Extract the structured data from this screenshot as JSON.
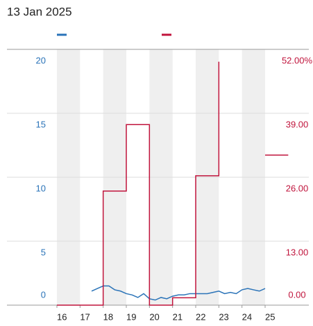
{
  "chart_data": {
    "type": "line",
    "title": "13 Jan 2025",
    "xlim": [
      16,
      25
    ],
    "xticks": [
      16,
      17,
      18,
      19,
      20,
      21,
      22,
      23,
      24,
      25
    ],
    "ylim": [
      0,
      20
    ],
    "yticks": [
      0,
      5,
      10,
      15,
      20
    ],
    "y2lim": [
      0,
      52
    ],
    "y2ticks": [
      {
        "value": 0,
        "label": "0.00"
      },
      {
        "value": 13,
        "label": "13.00"
      },
      {
        "value": 26,
        "label": "26.00"
      },
      {
        "value": 39,
        "label": "39.00"
      },
      {
        "value": 52,
        "label": "52.00%"
      }
    ],
    "grid": true,
    "series": [
      {
        "color": "#2a73b8",
        "x": [
          17.5,
          17.75,
          18,
          18.25,
          18.5,
          18.75,
          19,
          19.25,
          19.5,
          19.75,
          20,
          20.25,
          20.5,
          20.75,
          21,
          21.25,
          21.5,
          21.75,
          22,
          22.25,
          22.5,
          22.75,
          23,
          23.25,
          23.5,
          23.75,
          24,
          24.25,
          24.5,
          24.75,
          25
        ],
        "values": [
          1.1,
          1.3,
          1.5,
          1.5,
          1.2,
          1.1,
          0.9,
          0.8,
          0.6,
          0.9,
          0.5,
          0.4,
          0.6,
          0.5,
          0.7,
          0.8,
          0.8,
          0.9,
          0.9,
          0.9,
          0.9,
          1.0,
          1.1,
          0.9,
          1.0,
          0.9,
          1.2,
          1.3,
          1.2,
          1.1,
          1.3
        ]
      },
      {
        "color": "#c0143c",
        "axis": "y2",
        "step": true,
        "x": [
          16,
          17,
          18,
          19,
          20,
          21,
          22,
          23,
          24,
          25,
          26
        ],
        "values": [
          0,
          0,
          23.2,
          36.7,
          0,
          1.5,
          26.3,
          49.5,
          null,
          30.5,
          30.5
        ]
      }
    ]
  }
}
